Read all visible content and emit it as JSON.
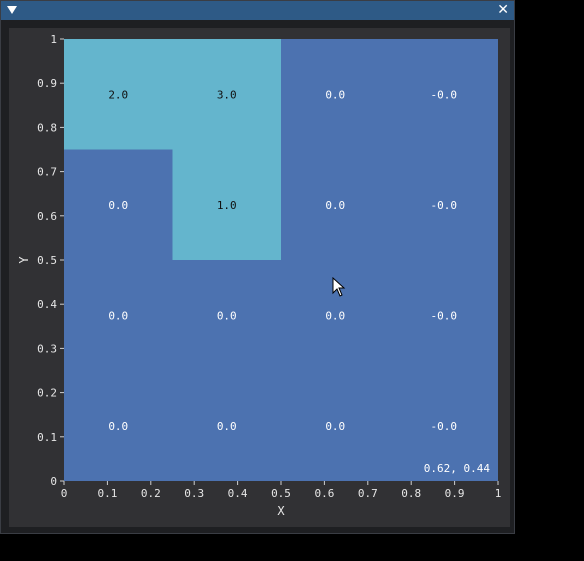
{
  "window": {
    "collapse_icon": "triangle-down-icon",
    "close_label": "✕"
  },
  "chart_data": {
    "type": "heatmap",
    "xlabel": "X",
    "ylabel": "Y",
    "xlim": [
      0,
      1
    ],
    "ylim": [
      0,
      1
    ],
    "x_ticks": [
      "0",
      "0.1",
      "0.2",
      "0.3",
      "0.4",
      "0.5",
      "0.6",
      "0.7",
      "0.8",
      "0.9",
      "1"
    ],
    "y_ticks": [
      "0",
      "0.1",
      "0.2",
      "0.3",
      "0.4",
      "0.5",
      "0.6",
      "0.7",
      "0.8",
      "0.9",
      "1"
    ],
    "grid": false,
    "colors": {
      "low": "#4c72b0",
      "high": "#64b5cd"
    },
    "columns": 4,
    "rows": 4,
    "cells": [
      [
        "2.0",
        "3.0",
        "0.0",
        "-0.0"
      ],
      [
        "0.0",
        "1.0",
        "0.0",
        "-0.0"
      ],
      [
        "0.0",
        "0.0",
        "0.0",
        "-0.0"
      ],
      [
        "0.0",
        "0.0",
        "0.0",
        "-0.0"
      ]
    ],
    "highlight_regions": [
      {
        "x0": 0.0,
        "x1": 0.5,
        "y0": 0.75,
        "y1": 1.0
      },
      {
        "x0": 0.25,
        "x1": 0.5,
        "y0": 0.5,
        "y1": 0.75
      }
    ],
    "cursor_readout": "0.62, 0.44"
  }
}
